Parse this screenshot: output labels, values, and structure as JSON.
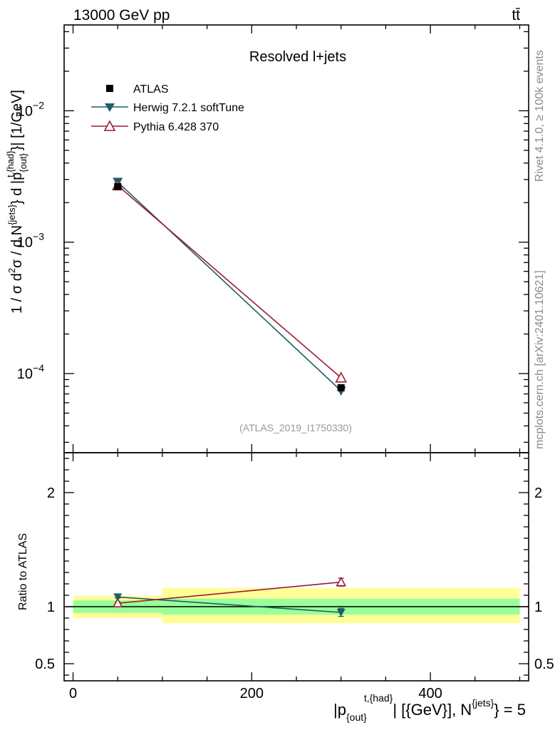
{
  "header": {
    "left": "13000 GeV pp",
    "right": "tt̄"
  },
  "side_text": {
    "rivet": "Rivet 4.1.0, ≥ 100k events",
    "source": "mcplots.cern.ch [arXiv:2401.10621]"
  },
  "chart_data": {
    "type": "scatter",
    "title": "Resolved l+jets",
    "analysis_label": "(ATLAS_2019_I1750330)",
    "xlabel": {
      "p_open": "|p",
      "p_sub": "{out}",
      "p_sup": "t,{had}",
      "middle": "| [{GeV}], N",
      "n_sup": "{jets}",
      "end": "} = 5"
    },
    "ylabel": {
      "a": "1 / σ d",
      "a_sup": "2",
      "b": "σ / d N",
      "b_sup": "{jets}",
      "c": "} d |p",
      "c_sub": "{out}",
      "c_sup": "t,{had}",
      "d": "}| [1/GeV]"
    },
    "ratio_ylabel": "Ratio to ATLAS",
    "xlim": [
      -10,
      510
    ],
    "ylim": [
      2.5e-05,
      0.045
    ],
    "yscale": "log",
    "ratio_ylim": [
      0.35,
      2.35
    ],
    "x_ticks": [
      0,
      200,
      400
    ],
    "x_tick_labels": [
      "0",
      "200",
      "400"
    ],
    "y_ticks": [
      0.01,
      0.001,
      0.0001
    ],
    "y_tick_labels": [
      {
        "base": "10",
        "exp": "−2"
      },
      {
        "base": "10",
        "exp": "−3"
      },
      {
        "base": "10",
        "exp": "−4"
      }
    ],
    "ratio_ticks": [
      2,
      1,
      0.5
    ],
    "ratio_tick_labels": [
      "2",
      "1",
      "0.5"
    ],
    "bins": [
      [
        0,
        100
      ],
      [
        100,
        500
      ]
    ],
    "ratio_bands": {
      "stat": [
        [
          0.945,
          1.055
        ],
        [
          0.93,
          1.07
        ]
      ],
      "total": [
        [
          0.9,
          1.095
        ],
        [
          0.855,
          1.165
        ]
      ]
    },
    "series": [
      {
        "name": "ATLAS",
        "marker": "square",
        "color": "#000000",
        "x": [
          50,
          300
        ],
        "y": [
          0.00265,
          7.8e-05
        ],
        "ratio": [
          1.0,
          1.0
        ]
      },
      {
        "name": "Herwig 7.2.1 softTune",
        "marker": "triangle-down",
        "color": "#1f5e68",
        "x": [
          50,
          300
        ],
        "y": [
          0.00287,
          7.4e-05
        ],
        "ratio": [
          1.085,
          0.95
        ],
        "ratio_err": [
          0.01,
          0.035
        ]
      },
      {
        "name": "Pythia 6.428 370",
        "marker": "triangle-up-open",
        "color": "#9c1b34",
        "x": [
          50,
          300
        ],
        "y": [
          0.0027,
          9.3e-05
        ],
        "ratio": [
          1.03,
          1.215
        ],
        "ratio_err": [
          0.01,
          0.035
        ]
      }
    ],
    "colors": {
      "stat_band": "#99ff99",
      "total_band": "#ffff99"
    }
  }
}
